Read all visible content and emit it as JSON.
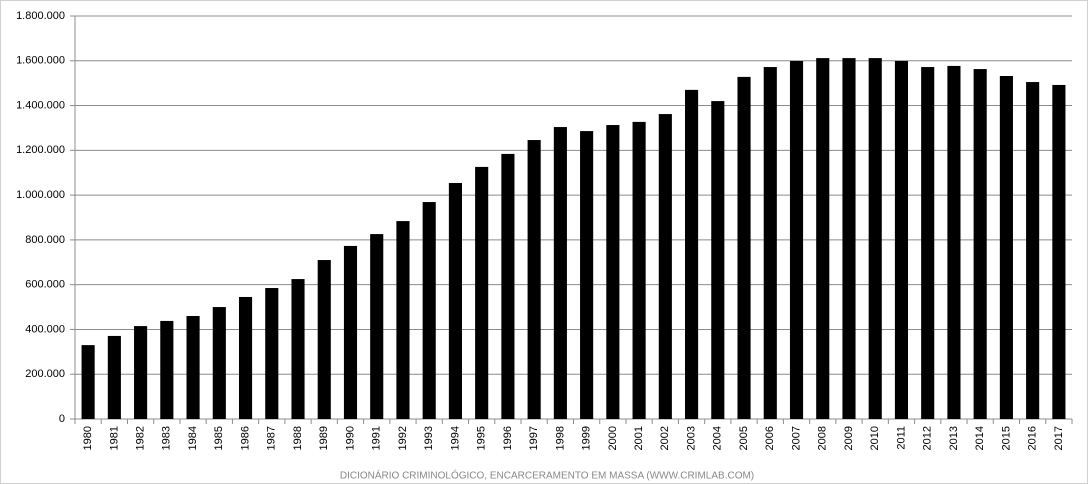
{
  "chart_data": {
    "type": "bar",
    "caption": "DICIONÁRIO CRIMINOLÓGICO, ENCARCERAMENTO EM MASSA (WWW.CRIMLAB.COM)",
    "categories": [
      "1980",
      "1981",
      "1982",
      "1983",
      "1984",
      "1985",
      "1986",
      "1987",
      "1988",
      "1989",
      "1990",
      "1991",
      "1992",
      "1993",
      "1994",
      "1995",
      "1996",
      "1997",
      "1998",
      "1999",
      "2000",
      "2001",
      "2002",
      "2003",
      "2004",
      "2005",
      "2006",
      "2007",
      "2008",
      "2009",
      "2010",
      "2011",
      "2012",
      "2013",
      "2014",
      "2015",
      "2016",
      "2017"
    ],
    "values": [
      330000,
      371000,
      415000,
      438000,
      460000,
      500000,
      545000,
      585000,
      625000,
      710000,
      773000,
      826000,
      884000,
      969000,
      1054000,
      1126000,
      1184000,
      1246000,
      1304000,
      1286000,
      1313000,
      1327000,
      1362000,
      1470000,
      1420000,
      1528000,
      1572000,
      1599000,
      1612000,
      1612000,
      1612000,
      1599000,
      1572000,
      1577000,
      1563000,
      1532000,
      1505000,
      1492000
    ],
    "color": "#000000",
    "ylim": [
      0,
      1800000
    ],
    "yticks": [
      0,
      {
        "value": 200000,
        "label": "200.000"
      },
      {
        "value": 400000,
        "label": "400.000"
      },
      {
        "value": 600000,
        "label": "600.000"
      },
      {
        "value": 800000,
        "label": "800.000"
      },
      {
        "value": 1000000,
        "label": "1.000.000"
      },
      {
        "value": 1200000,
        "label": "1.200.000"
      },
      {
        "value": 1400000,
        "label": "1.400.000"
      },
      {
        "value": 1600000,
        "label": "1.600.000"
      },
      {
        "value": 1800000,
        "label": "1.800.000"
      }
    ],
    "grid": true
  }
}
